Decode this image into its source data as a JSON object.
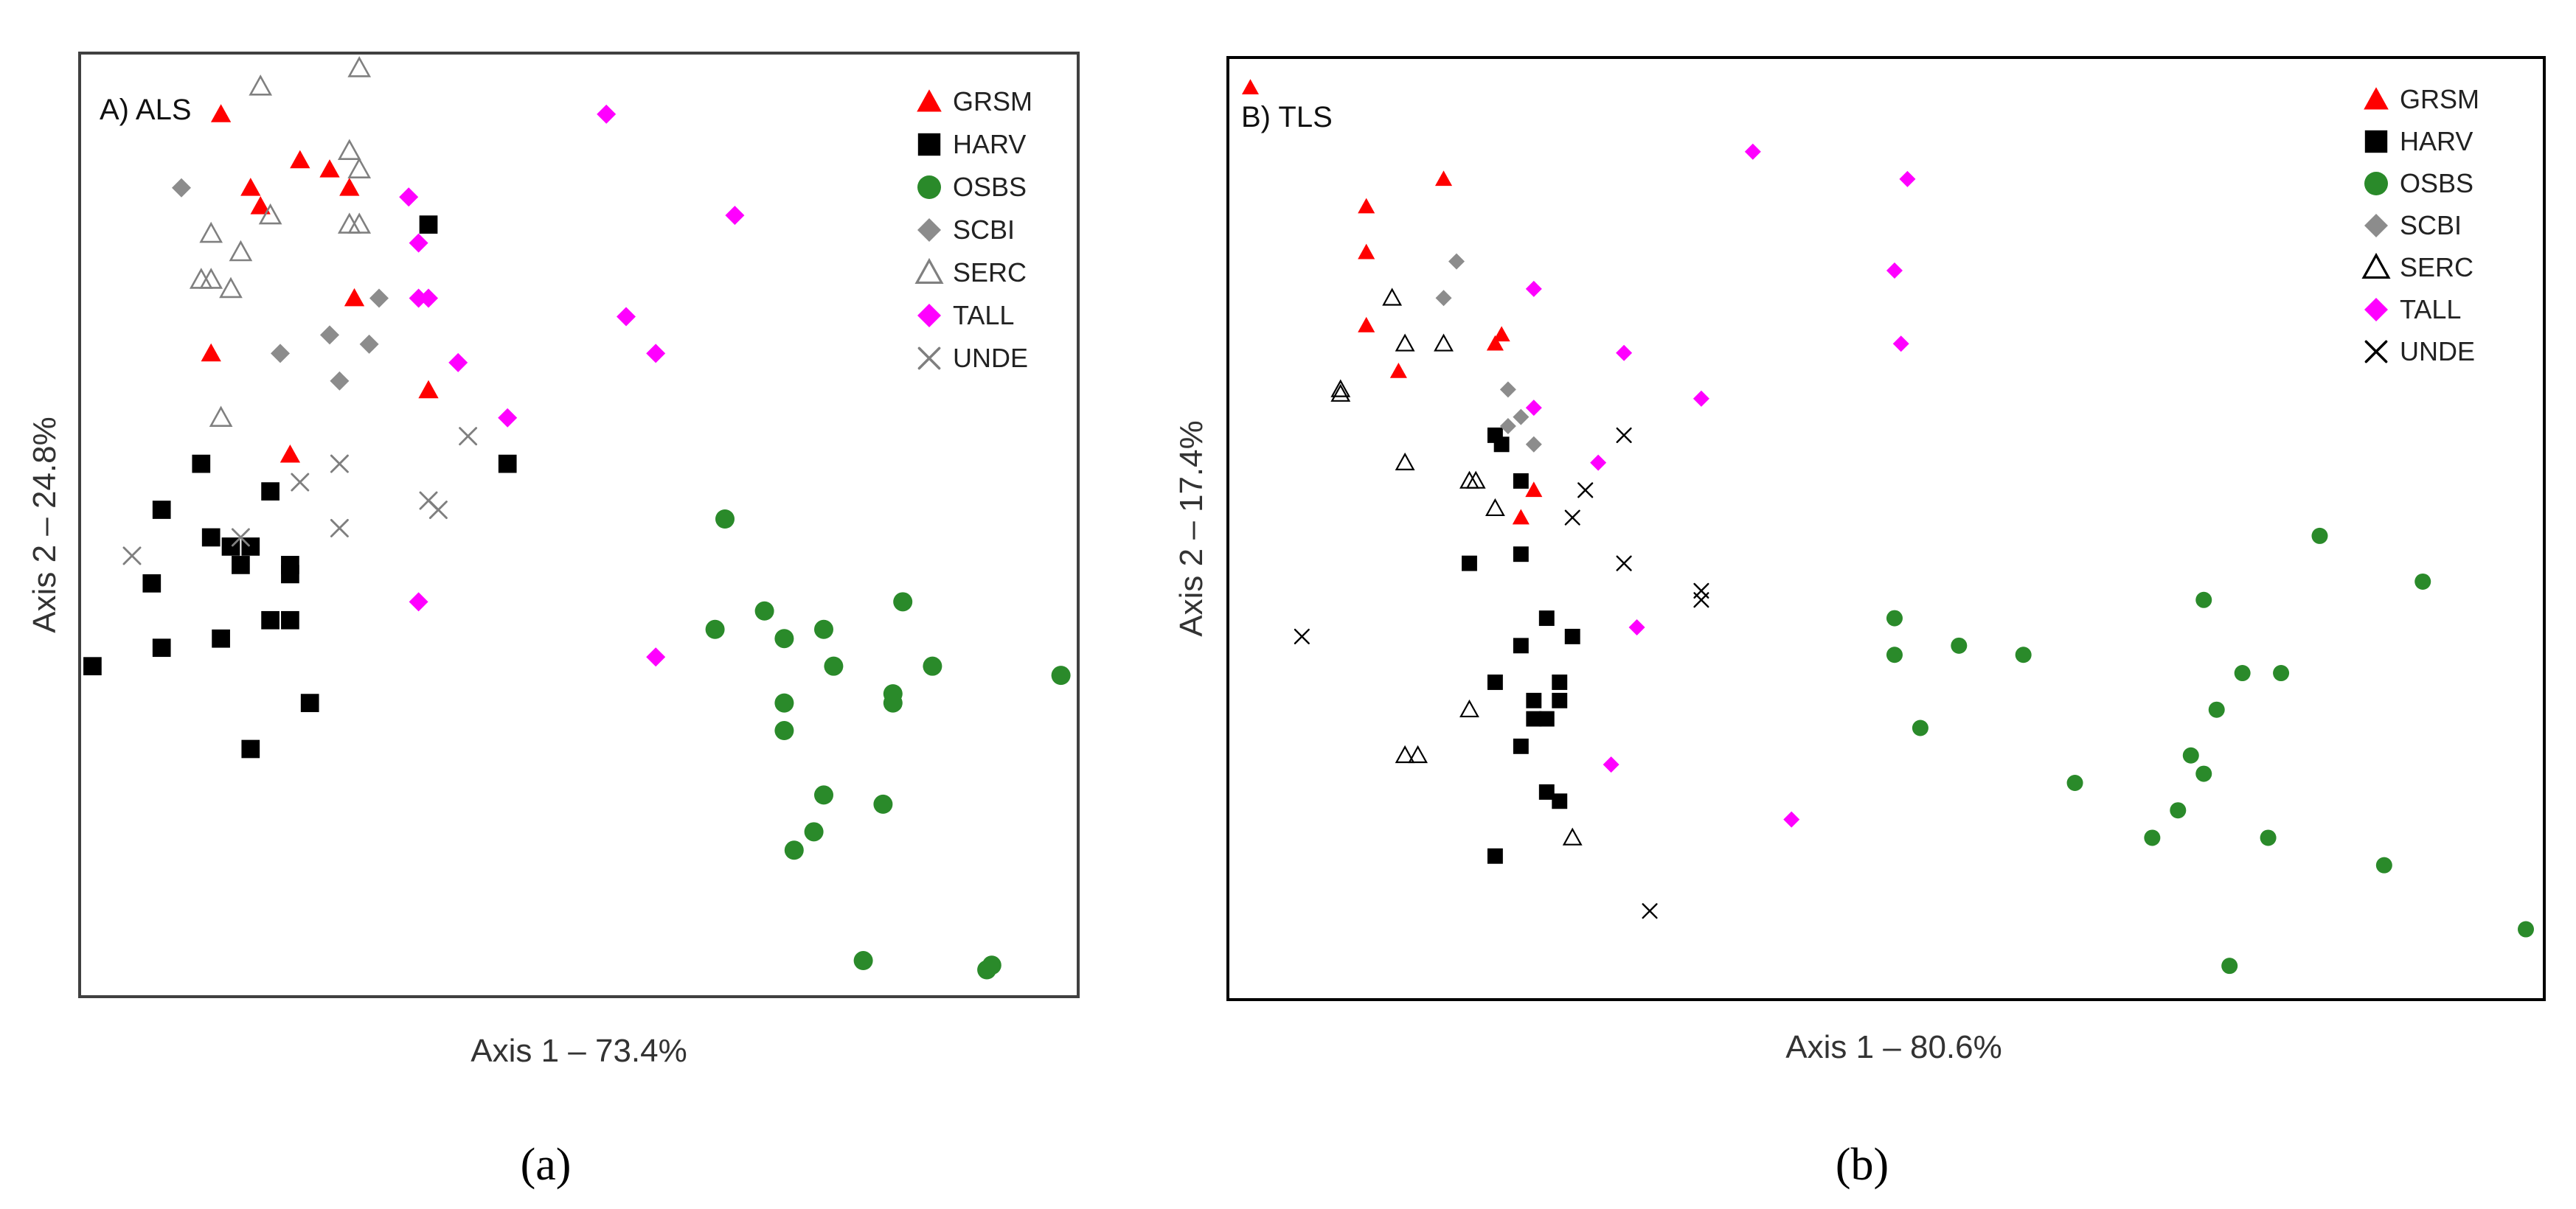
{
  "chart_data": [
    {
      "type": "scatter",
      "title": "A) ALS",
      "xlabel": "Axis 1 – 73.4%",
      "ylabel": "Axis 2 – 24.8%",
      "caption": "(a)",
      "xlim": [
        0,
        100
      ],
      "ylim": [
        0,
        100
      ],
      "grid": false,
      "legend_position": "top-right",
      "series": [
        {
          "name": "GRSM",
          "marker": "triangle",
          "color": "#ff0000",
          "points": [
            [
              14,
              94
            ],
            [
              17,
              86
            ],
            [
              18,
              84
            ],
            [
              22,
              89
            ],
            [
              25,
              88
            ],
            [
              27,
              86
            ],
            [
              27.5,
              74
            ],
            [
              13,
              68
            ],
            [
              35,
              64
            ],
            [
              21,
              57
            ]
          ]
        },
        {
          "name": "HARV",
          "marker": "square",
          "color": "#000000",
          "points": [
            [
              35,
              82
            ],
            [
              12,
              56
            ],
            [
              8,
              51
            ],
            [
              19,
              53
            ],
            [
              13,
              48
            ],
            [
              15,
              47
            ],
            [
              17,
              47
            ],
            [
              21,
              45
            ],
            [
              21,
              44
            ],
            [
              16,
              45
            ],
            [
              7,
              43
            ],
            [
              19,
              39
            ],
            [
              21,
              39
            ],
            [
              14,
              37
            ],
            [
              8,
              36
            ],
            [
              23,
              30
            ],
            [
              17,
              25
            ],
            [
              1,
              34
            ],
            [
              43,
              56
            ]
          ]
        },
        {
          "name": "OSBS",
          "marker": "circle",
          "color": "#2a8a2a",
          "points": [
            [
              65,
              50
            ],
            [
              69,
              40
            ],
            [
              83,
              41
            ],
            [
              64,
              38
            ],
            [
              75,
              38
            ],
            [
              71,
              37
            ],
            [
              76,
              34
            ],
            [
              86,
              34
            ],
            [
              82,
              31
            ],
            [
              82,
              30
            ],
            [
              99,
              33
            ],
            [
              71,
              30
            ],
            [
              71,
              27
            ],
            [
              75,
              20
            ],
            [
              81,
              19
            ],
            [
              74,
              16
            ],
            [
              72,
              14
            ],
            [
              79,
              2
            ],
            [
              92,
              1.5
            ],
            [
              91.5,
              1
            ]
          ]
        },
        {
          "name": "SCBI",
          "marker": "diamond",
          "color": "#8c8c8c",
          "points": [
            [
              10,
              86
            ],
            [
              30,
              74
            ],
            [
              25,
              70
            ],
            [
              29,
              69
            ],
            [
              20,
              68
            ],
            [
              26,
              65
            ]
          ]
        },
        {
          "name": "SERC",
          "marker": "triangle-open",
          "color": "#808080",
          "points": [
            [
              18,
              97
            ],
            [
              28,
              99
            ],
            [
              27,
              90
            ],
            [
              28,
              88
            ],
            [
              19,
              83
            ],
            [
              27,
              82
            ],
            [
              28,
              82
            ],
            [
              13,
              81
            ],
            [
              16,
              79
            ],
            [
              12,
              76
            ],
            [
              13,
              76
            ],
            [
              15,
              75
            ],
            [
              14,
              61
            ]
          ]
        },
        {
          "name": "TALL",
          "marker": "diamond",
          "color": "#ff00ff",
          "points": [
            [
              53,
              94
            ],
            [
              66,
              83
            ],
            [
              33,
              85
            ],
            [
              34,
              80
            ],
            [
              34,
              74
            ],
            [
              35,
              74
            ],
            [
              55,
              72
            ],
            [
              58,
              68
            ],
            [
              38,
              67
            ],
            [
              43,
              61
            ],
            [
              34,
              41
            ],
            [
              58,
              35
            ]
          ]
        },
        {
          "name": "UNDE",
          "marker": "x",
          "color": "#7f7f7f",
          "points": [
            [
              39,
              59
            ],
            [
              26,
              56
            ],
            [
              22,
              54
            ],
            [
              35,
              52
            ],
            [
              36,
              51
            ],
            [
              26,
              49
            ],
            [
              16,
              48
            ],
            [
              5,
              46
            ]
          ]
        }
      ]
    },
    {
      "type": "scatter",
      "title": "B) TLS",
      "xlabel": "Axis 1 – 80.6%",
      "ylabel": "Axis 2 – 17.4%",
      "caption": "(b)",
      "xlim": [
        0,
        100
      ],
      "ylim": [
        0,
        100
      ],
      "grid": false,
      "legend_position": "top-right",
      "series": [
        {
          "name": "GRSM",
          "marker": "triangle",
          "color": "#ff0000",
          "points": [
            [
              1,
              98
            ],
            [
              10,
              85
            ],
            [
              16,
              88
            ],
            [
              10,
              80
            ],
            [
              20,
              70
            ],
            [
              20.5,
              71
            ],
            [
              10,
              72
            ],
            [
              12.5,
              67
            ],
            [
              23,
              54
            ],
            [
              22,
              51
            ]
          ]
        },
        {
          "name": "HARV",
          "marker": "square",
          "color": "#000000",
          "points": [
            [
              20,
              60
            ],
            [
              20.5,
              59
            ],
            [
              22,
              55
            ],
            [
              18,
              46
            ],
            [
              22,
              47
            ],
            [
              24,
              40
            ],
            [
              26,
              38
            ],
            [
              22,
              37
            ],
            [
              25,
              33
            ],
            [
              20,
              33
            ],
            [
              23,
              31
            ],
            [
              25,
              31
            ],
            [
              23,
              29
            ],
            [
              24,
              29
            ],
            [
              22,
              26
            ],
            [
              24,
              21
            ],
            [
              25,
              20
            ],
            [
              20,
              14
            ]
          ]
        },
        {
          "name": "OSBS",
          "marker": "circle",
          "color": "#2a8a2a",
          "points": [
            [
              84,
              49
            ],
            [
              92,
              44
            ],
            [
              75,
              42
            ],
            [
              51,
              40
            ],
            [
              56,
              37
            ],
            [
              61,
              36
            ],
            [
              51,
              36
            ],
            [
              78,
              34
            ],
            [
              81,
              34
            ],
            [
              76,
              30
            ],
            [
              53,
              28
            ],
            [
              74,
              25
            ],
            [
              65,
              22
            ],
            [
              75,
              23
            ],
            [
              73,
              19
            ],
            [
              80,
              16
            ],
            [
              71,
              16
            ],
            [
              89,
              13
            ],
            [
              100,
              6
            ],
            [
              77,
              2
            ]
          ]
        },
        {
          "name": "SCBI",
          "marker": "diamond",
          "color": "#8c8c8c",
          "points": [
            [
              17,
              79
            ],
            [
              16,
              75
            ],
            [
              21,
              65
            ],
            [
              22,
              62
            ],
            [
              21,
              61
            ],
            [
              23,
              59
            ]
          ]
        },
        {
          "name": "SERC",
          "marker": "triangle-open",
          "color": "#000000",
          "points": [
            [
              12,
              75
            ],
            [
              13,
              70
            ],
            [
              16,
              70
            ],
            [
              8,
              65
            ],
            [
              8,
              64.5
            ],
            [
              13,
              57
            ],
            [
              18,
              55
            ],
            [
              18.5,
              55
            ],
            [
              20,
              52
            ],
            [
              18,
              30
            ],
            [
              13,
              25
            ],
            [
              14,
              25
            ],
            [
              26,
              16
            ]
          ]
        },
        {
          "name": "TALL",
          "marker": "diamond",
          "color": "#ff00ff",
          "points": [
            [
              40,
              91
            ],
            [
              52,
              88
            ],
            [
              51,
              78
            ],
            [
              23,
              76
            ],
            [
              30,
              69
            ],
            [
              51.5,
              70
            ],
            [
              36,
              64
            ],
            [
              23,
              63
            ],
            [
              28,
              57
            ],
            [
              31,
              39
            ],
            [
              29,
              24
            ],
            [
              43,
              18
            ]
          ]
        },
        {
          "name": "UNDE",
          "marker": "x",
          "color": "#000000",
          "points": [
            [
              30,
              60
            ],
            [
              27,
              54
            ],
            [
              26,
              51
            ],
            [
              30,
              46
            ],
            [
              36,
              42
            ],
            [
              36,
              43
            ],
            [
              5,
              38
            ],
            [
              32,
              8
            ]
          ]
        }
      ]
    }
  ]
}
